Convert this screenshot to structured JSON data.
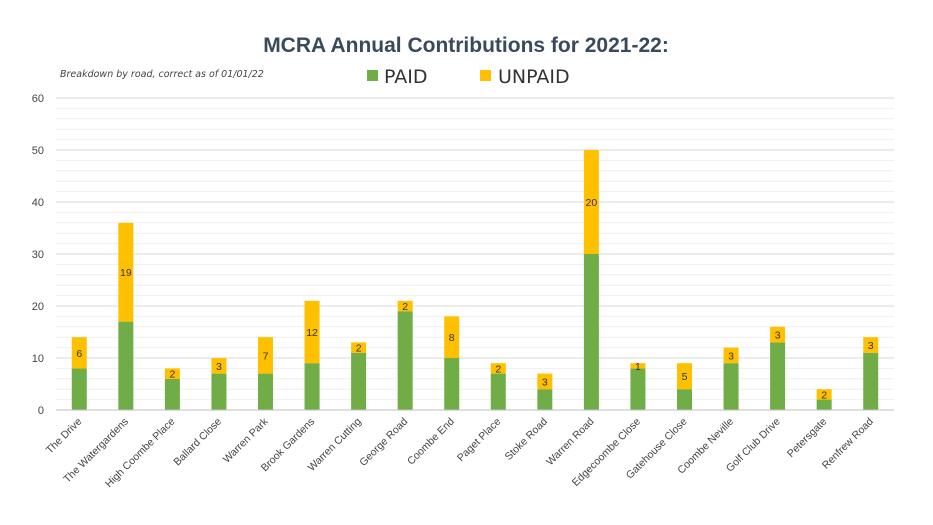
{
  "chart_data": {
    "type": "bar",
    "stacked": true,
    "title": "MCRA Annual Contributions for 2021-22:",
    "subtitle": "Breakdown by road, correct as of 01/01/22",
    "xlabel": "",
    "ylabel": "",
    "ylim": [
      0,
      60
    ],
    "yticks": [
      0,
      10,
      20,
      30,
      40,
      50,
      60
    ],
    "legend_position": "top-center",
    "categories": [
      "The Drive",
      "The Watergardens",
      "High Coombe Place",
      "Ballard Close",
      "Warren Park",
      "Brook Gardens",
      "Warren Cutting",
      "George Road",
      "Coombe End",
      "Paget Place",
      "Stoke Road",
      "Warren Road",
      "Edgecoombe Close",
      "Gatehouse Close",
      "Coombe Neville",
      "Golf Club Drive",
      "Petersgate",
      "Renfrew Road"
    ],
    "series": [
      {
        "name": "PAID",
        "color": "#70ad47",
        "values": [
          8,
          17,
          6,
          7,
          7,
          9,
          11,
          19,
          10,
          7,
          4,
          30,
          8,
          4,
          9,
          13,
          2,
          11
        ],
        "labels_shown": false
      },
      {
        "name": "UNPAID",
        "color": "#ffc000",
        "values": [
          6,
          19,
          2,
          3,
          7,
          12,
          2,
          2,
          8,
          2,
          3,
          20,
          1,
          5,
          3,
          3,
          2,
          3
        ],
        "labels_shown": true
      }
    ]
  }
}
